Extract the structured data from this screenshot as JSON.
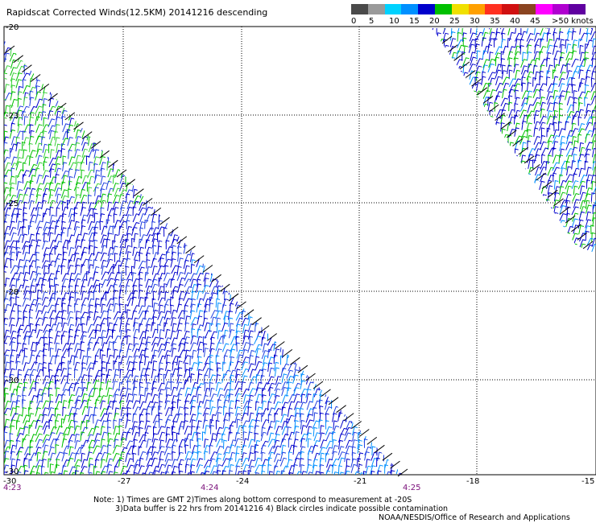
{
  "title": "Rapidscat Corrected Winds(12.5KM) 20141216 descending",
  "legend": {
    "labels": [
      "0",
      "5",
      "10",
      "15",
      "20",
      "25",
      "30",
      "35",
      "40",
      "45",
      ">50 knots"
    ],
    "colors": [
      "#4a4a4a",
      "#9a9a9a",
      "#00d2ff",
      "#0090ff",
      "#0000cc",
      "#00c000",
      "#f0e000",
      "#ffa000",
      "#ff3020",
      "#d01010",
      "#8a4420",
      "#ff00ff",
      "#b000d0",
      "#6000a0"
    ]
  },
  "map": {
    "lat_labels": [
      "-20",
      "-23",
      "-25",
      "-28",
      "-30",
      "-30"
    ],
    "lon_labels": [
      "-30",
      "-27",
      "-24",
      "-21",
      "-18",
      "-15"
    ],
    "time_labels": [
      "4:23",
      "4:24",
      "4:25"
    ],
    "swath_palette": [
      "#0000cc",
      "#1f3ee0",
      "#0090ff",
      "#00c000",
      "#38d038"
    ]
  },
  "notes": {
    "line1": "Note: 1) Times are GMT 2)Times along bottom correspond to measurement at -20S",
    "line2": "3)Data buffer is 22 hrs from 20141216 4) Black circles indicate possible contamination"
  },
  "credit": "NOAA/NESDIS/Office of Research and Applications"
}
